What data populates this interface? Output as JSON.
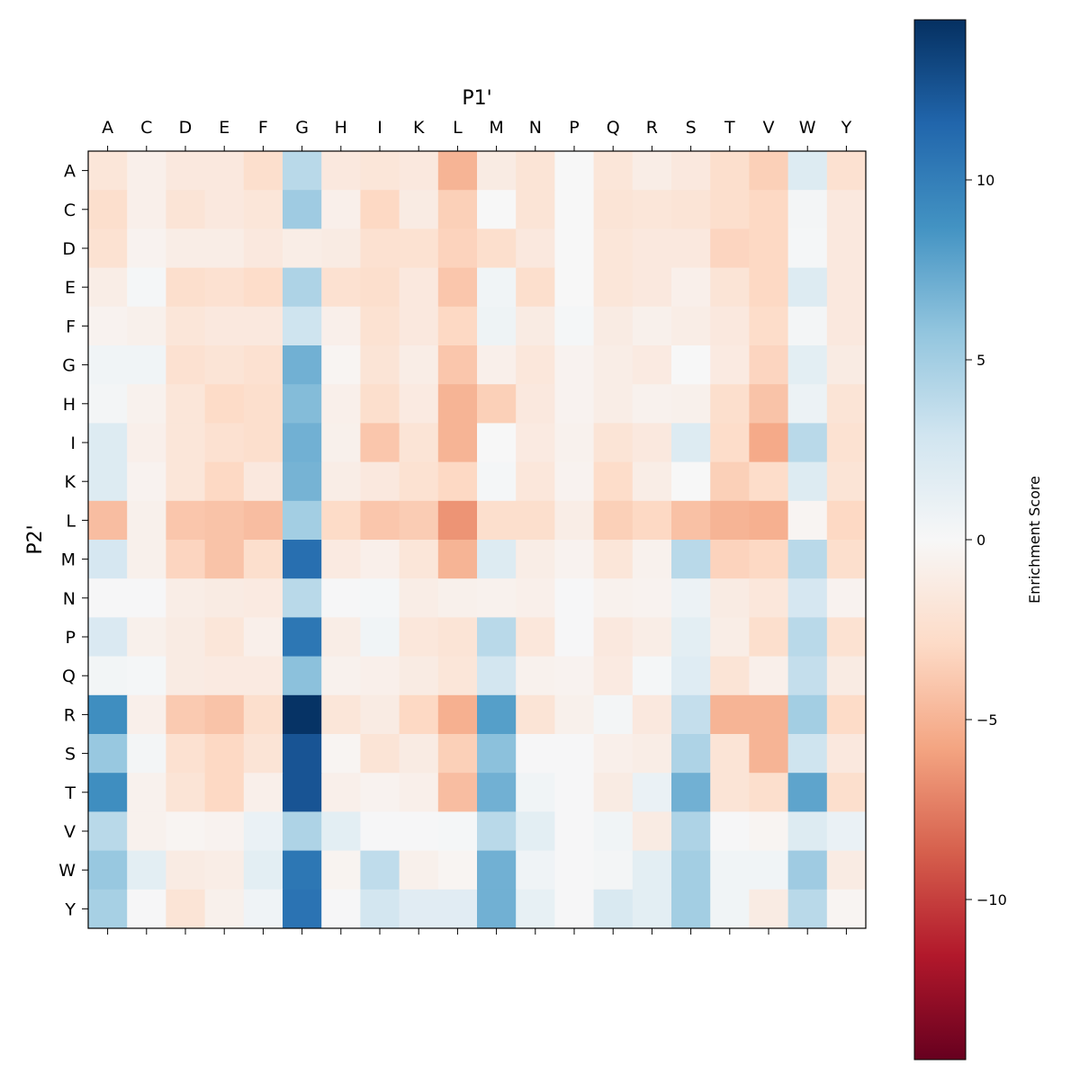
{
  "chart_data": {
    "type": "heatmap",
    "xlabel": "P1'",
    "ylabel": "P2'",
    "x_categories": [
      "A",
      "C",
      "D",
      "E",
      "F",
      "G",
      "H",
      "I",
      "K",
      "L",
      "M",
      "N",
      "P",
      "Q",
      "R",
      "S",
      "T",
      "V",
      "W",
      "Y"
    ],
    "y_categories": [
      "A",
      "C",
      "D",
      "E",
      "F",
      "G",
      "H",
      "I",
      "K",
      "L",
      "M",
      "N",
      "P",
      "Q",
      "R",
      "S",
      "T",
      "V",
      "W",
      "Y"
    ],
    "colormap": "RdBu",
    "vmin": -14.45,
    "vmax": 14.45,
    "colorbar": {
      "label": "Enrichment Score",
      "ticks": [
        10,
        5,
        0,
        -5,
        -10
      ],
      "tick_labels": [
        "10",
        "5",
        "0",
        "−5",
        "−10"
      ]
    },
    "values": [
      [
        -1.8,
        -0.8,
        -1.5,
        -1.5,
        -2.5,
        4,
        -1.5,
        -1.8,
        -1.5,
        -5,
        -1.2,
        -2,
        0,
        -1.8,
        -1,
        -1.5,
        -2.5,
        -3.5,
        2,
        -2.3
      ],
      [
        -2.5,
        -0.8,
        -2,
        -1.5,
        -1.8,
        5.2,
        -0.8,
        -3,
        -1.2,
        -3.5,
        0,
        -2,
        0,
        -2,
        -1.8,
        -2,
        -2.5,
        -3,
        0.3,
        -1.5
      ],
      [
        -2.2,
        -0.5,
        -1,
        -1,
        -1.5,
        -1,
        -1.2,
        -2.3,
        -2.2,
        -3.3,
        -2.5,
        -1.5,
        0,
        -1.8,
        -1.5,
        -1.5,
        -3.2,
        -3,
        0.2,
        -1.5
      ],
      [
        -1,
        0.2,
        -2.5,
        -2.3,
        -2.7,
        4.5,
        -2.3,
        -2.5,
        -1.5,
        -4,
        0.5,
        -2.5,
        0,
        -1.8,
        -1.5,
        -0.8,
        -2,
        -3,
        2,
        -1.5
      ],
      [
        -0.5,
        -0.7,
        -1.8,
        -1.5,
        -1.5,
        3,
        -0.8,
        -2.2,
        -1.5,
        -3,
        0.7,
        -1.2,
        0.2,
        -1.2,
        -0.7,
        -1,
        -1.5,
        -2.7,
        0.3,
        -1.5
      ],
      [
        0.5,
        0.5,
        -2.3,
        -2,
        -2.3,
        7,
        -0.3,
        -2,
        -1,
        -4,
        -0.8,
        -1.7,
        -0.5,
        -1,
        -1.3,
        0,
        -1.3,
        -3.2,
        1.5,
        -1.2
      ],
      [
        0.3,
        -0.6,
        -1.8,
        -2.8,
        -2.5,
        6.3,
        -0.8,
        -2.5,
        -1.3,
        -5,
        -3.5,
        -1.5,
        -0.5,
        -1,
        -0.6,
        -0.7,
        -2.5,
        -4.2,
        0.8,
        -2
      ],
      [
        2,
        -0.8,
        -1.8,
        -2.3,
        -2.5,
        7,
        -0.7,
        -4,
        -2,
        -5,
        0,
        -1.3,
        -0.6,
        -2,
        -1.5,
        2,
        -2.7,
        -5.5,
        4,
        -2.2
      ],
      [
        2,
        -0.5,
        -1.8,
        -3,
        -1.5,
        6.8,
        -1,
        -1.5,
        -2.2,
        -3,
        0.2,
        -1.7,
        -0.5,
        -2.7,
        -1,
        0,
        -3.5,
        -2.7,
        2,
        -2
      ],
      [
        -4.5,
        -0.7,
        -4,
        -4.2,
        -4.5,
        5,
        -2.8,
        -4,
        -3.7,
        -6.5,
        -2.5,
        -2.5,
        -1,
        -3.5,
        -3,
        -4.3,
        -5,
        -5.2,
        -0.3,
        -3
      ],
      [
        2.5,
        -0.7,
        -3.2,
        -4.2,
        -2.5,
        11,
        -1.3,
        -0.8,
        -1.8,
        -5,
        2,
        -1,
        -0.5,
        -1.8,
        -0.6,
        4,
        -3.3,
        -3,
        4,
        -2.5
      ],
      [
        0.1,
        0.1,
        -1,
        -1.2,
        -1.3,
        4,
        0.1,
        0.2,
        -1,
        -0.7,
        -0.6,
        -0.8,
        0.1,
        -0.6,
        -0.5,
        0.8,
        -1.2,
        -1.7,
        2.5,
        -0.5
      ],
      [
        2.2,
        -0.7,
        -1.2,
        -1.8,
        -0.8,
        10.5,
        -1,
        0.5,
        -1.7,
        -2,
        4,
        -1.7,
        0.1,
        -1.5,
        -1,
        1.5,
        -1,
        -2.5,
        4,
        -2.2
      ],
      [
        0.4,
        0.2,
        -1.2,
        -1.3,
        -1.3,
        6,
        -0.6,
        -0.8,
        -1.2,
        -1.8,
        2.7,
        -0.6,
        -0.5,
        -1.3,
        0.2,
        1.8,
        -2,
        -0.8,
        3.5,
        -1.2
      ],
      [
        9,
        -0.8,
        -3.8,
        -4.2,
        -2.5,
        14.3,
        -1.8,
        -1.2,
        -3,
        -5.2,
        8,
        -2,
        -0.7,
        0.3,
        -1.5,
        3.5,
        -5,
        -5,
        5,
        -2.8
      ],
      [
        5.5,
        0.3,
        -2.3,
        -3,
        -2,
        12.5,
        -0.3,
        -2,
        -1.2,
        -3.5,
        6,
        0.1,
        0.1,
        -0.8,
        -1,
        4.5,
        -2,
        -5,
        3,
        -1.5
      ],
      [
        9,
        -0.6,
        -2,
        -3,
        -0.8,
        12.5,
        -0.8,
        -0.5,
        -0.8,
        -4.5,
        7,
        0.5,
        0.1,
        -1.2,
        1,
        7,
        -2,
        -2.5,
        7.7,
        -2.5
      ],
      [
        4,
        -0.6,
        -0.3,
        -0.5,
        1,
        4.5,
        1.5,
        0.1,
        0.1,
        0.2,
        4,
        1.5,
        0.1,
        0.5,
        -1.2,
        4.5,
        0.1,
        -0.3,
        2,
        1
      ],
      [
        5.5,
        1.5,
        -1.2,
        -1,
        1.5,
        10.5,
        -0.4,
        3.7,
        -0.7,
        -0.3,
        7,
        0.6,
        0.1,
        0.3,
        1.5,
        5,
        0.5,
        0.5,
        5.2,
        -1.2
      ],
      [
        4.8,
        0.1,
        -2,
        -0.7,
        0.6,
        10.7,
        0.1,
        2.7,
        1.7,
        1.7,
        7,
        1.2,
        0.1,
        2.3,
        1.5,
        5,
        0.5,
        -1.2,
        4,
        -0.3
      ]
    ]
  }
}
